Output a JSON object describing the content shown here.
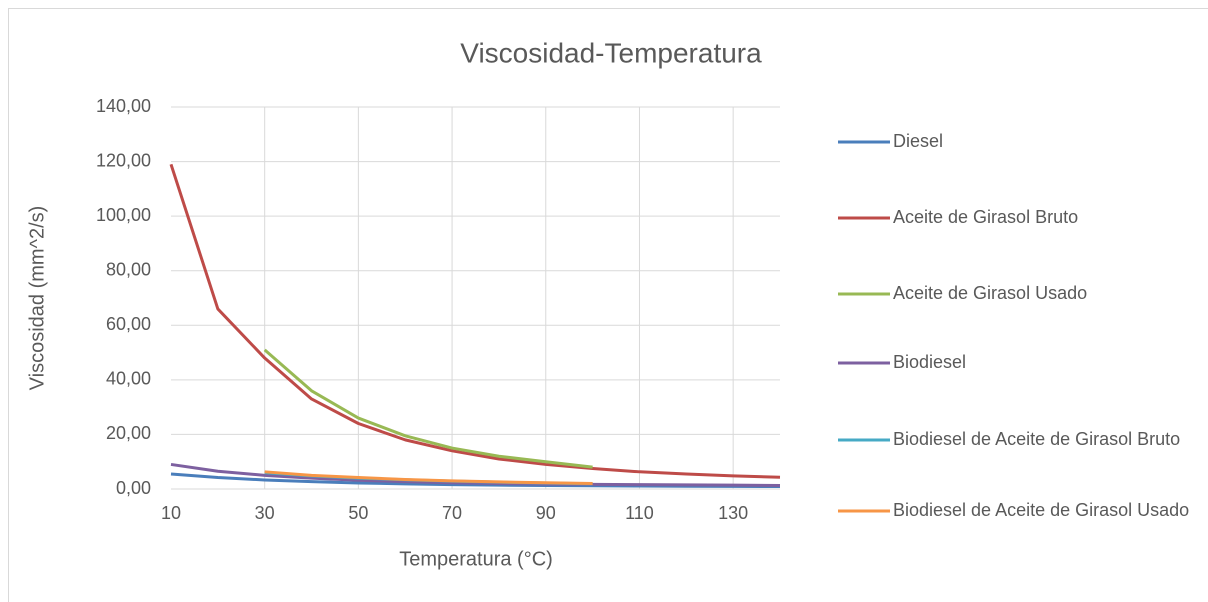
{
  "chart_data": {
    "type": "line",
    "title": "Viscosidad-Temperatura",
    "xlabel": "Temperatura (°C)",
    "ylabel": "Viscosidad (mm^2/s)",
    "x": [
      10,
      20,
      30,
      40,
      50,
      60,
      70,
      80,
      90,
      100,
      110,
      120,
      130,
      140
    ],
    "series": [
      {
        "name": "Diesel",
        "color": "#4a7ebb",
        "values": [
          5.5,
          4.2,
          3.3,
          2.7,
          2.2,
          1.9,
          1.6,
          1.4,
          1.3,
          1.2,
          1.1,
          1.0,
          0.95,
          0.9
        ]
      },
      {
        "name": "Aceite de Girasol Bruto",
        "color": "#be4b48",
        "values": [
          119,
          66,
          48,
          33,
          24,
          18,
          14,
          11,
          9,
          7.5,
          6.3,
          5.5,
          4.8,
          4.3
        ]
      },
      {
        "name": "Aceite de Girasol Usado",
        "color": "#98b954",
        "values": [
          null,
          null,
          51,
          36,
          26,
          19.5,
          15,
          12,
          10,
          8,
          null,
          null,
          null,
          null
        ]
      },
      {
        "name": "Biodiesel",
        "color": "#7d60a0",
        "values": [
          9,
          6.5,
          5,
          4,
          3.2,
          2.7,
          2.3,
          2,
          1.8,
          1.7,
          1.6,
          1.5,
          1.4,
          1.3
        ]
      },
      {
        "name": "Biodiesel de Aceite de Girasol Bruto",
        "color": "#46aac5",
        "values": [
          null,
          null,
          6,
          4.8,
          4,
          3.4,
          2.9,
          2.5,
          2.2,
          1.9,
          null,
          null,
          null,
          null
        ]
      },
      {
        "name": "Biodiesel de Aceite de Girasol Usado",
        "color": "#f79646",
        "values": [
          null,
          null,
          6.3,
          5,
          4.2,
          3.5,
          3,
          2.6,
          2.3,
          2,
          null,
          null,
          null,
          null
        ]
      }
    ],
    "xlim": [
      10,
      140
    ],
    "xticks": [
      10,
      30,
      50,
      70,
      90,
      110,
      130
    ],
    "ylim": [
      0,
      140
    ],
    "yticks": [
      {
        "value": 0,
        "label": "0,00"
      },
      {
        "value": 20,
        "label": "20,00"
      },
      {
        "value": 40,
        "label": "40,00"
      },
      {
        "value": 60,
        "label": "60,00"
      },
      {
        "value": 80,
        "label": "80,00"
      },
      {
        "value": 100,
        "label": "100,00"
      },
      {
        "value": 120,
        "label": "120,00"
      },
      {
        "value": 140,
        "label": "140,00"
      }
    ],
    "grid": true,
    "legend": "right"
  }
}
